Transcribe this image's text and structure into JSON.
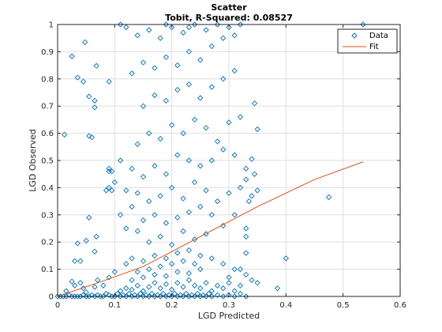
{
  "chart_data": {
    "type": "scatter",
    "title": "Scatter",
    "subtitle": "Tobit, R-Squared: 0.08527",
    "xlabel": "LGD Predicted",
    "ylabel": "LGD Observed",
    "xlim": [
      0,
      0.6
    ],
    "ylim": [
      0,
      1
    ],
    "grid": true,
    "legend_position": "top-right",
    "x_ticks": [
      "0",
      "0.1",
      "0.2",
      "0.3",
      "0.4",
      "0.5",
      "0.6"
    ],
    "y_ticks": [
      "0",
      "0.1",
      "0.2",
      "0.3",
      "0.4",
      "0.5",
      "0.6",
      "0.7",
      "0.8",
      "0.9",
      "1"
    ],
    "series": [
      {
        "name": "Data",
        "marker": "diamond",
        "color": "#0072bd",
        "points": [
          [
            0.0,
            0.0
          ],
          [
            0.005,
            0.0
          ],
          [
            0.01,
            0.0
          ],
          [
            0.015,
            0.0
          ],
          [
            0.02,
            0.005
          ],
          [
            0.025,
            0.0
          ],
          [
            0.03,
            0.0
          ],
          [
            0.035,
            0.0
          ],
          [
            0.04,
            0.0
          ],
          [
            0.045,
            0.005
          ],
          [
            0.05,
            0.0
          ],
          [
            0.055,
            0.0
          ],
          [
            0.06,
            0.005
          ],
          [
            0.065,
            0.0
          ],
          [
            0.07,
            0.005
          ],
          [
            0.075,
            0.0
          ],
          [
            0.08,
            0.0
          ],
          [
            0.085,
            0.01
          ],
          [
            0.09,
            0.005
          ],
          [
            0.095,
            0.0
          ],
          [
            0.1,
            0.0
          ],
          [
            0.105,
            0.01
          ],
          [
            0.11,
            0.0
          ],
          [
            0.115,
            0.005
          ],
          [
            0.12,
            0.0
          ],
          [
            0.125,
            0.01
          ],
          [
            0.13,
            0.0
          ],
          [
            0.135,
            0.005
          ],
          [
            0.14,
            0.0
          ],
          [
            0.145,
            0.01
          ],
          [
            0.15,
            0.0
          ],
          [
            0.155,
            0.005
          ],
          [
            0.16,
            0.0
          ],
          [
            0.165,
            0.01
          ],
          [
            0.17,
            0.0
          ],
          [
            0.175,
            0.005
          ],
          [
            0.18,
            0.0
          ],
          [
            0.185,
            0.01
          ],
          [
            0.19,
            0.0
          ],
          [
            0.195,
            0.005
          ],
          [
            0.2,
            0.0
          ],
          [
            0.205,
            0.01
          ],
          [
            0.21,
            0.0
          ],
          [
            0.215,
            0.005
          ],
          [
            0.22,
            0.0
          ],
          [
            0.225,
            0.01
          ],
          [
            0.23,
            0.0
          ],
          [
            0.235,
            0.005
          ],
          [
            0.24,
            0.0
          ],
          [
            0.245,
            0.01
          ],
          [
            0.25,
            0.0
          ],
          [
            0.255,
            0.005
          ],
          [
            0.26,
            0.0
          ],
          [
            0.265,
            0.01
          ],
          [
            0.27,
            0.0
          ],
          [
            0.28,
            0.005
          ],
          [
            0.29,
            0.0
          ],
          [
            0.3,
            0.005
          ],
          [
            0.31,
            0.0
          ],
          [
            0.32,
            0.01
          ],
          [
            0.33,
            0.0
          ],
          [
            0.11,
            0.02
          ],
          [
            0.12,
            0.03
          ],
          [
            0.13,
            0.025
          ],
          [
            0.14,
            0.04
          ],
          [
            0.15,
            0.02
          ],
          [
            0.16,
            0.035
          ],
          [
            0.17,
            0.05
          ],
          [
            0.18,
            0.03
          ],
          [
            0.19,
            0.045
          ],
          [
            0.2,
            0.025
          ],
          [
            0.21,
            0.05
          ],
          [
            0.22,
            0.035
          ],
          [
            0.23,
            0.06
          ],
          [
            0.24,
            0.04
          ],
          [
            0.25,
            0.03
          ],
          [
            0.26,
            0.05
          ],
          [
            0.27,
            0.02
          ],
          [
            0.28,
            0.04
          ],
          [
            0.29,
            0.03
          ],
          [
            0.3,
            0.05
          ],
          [
            0.31,
            0.02
          ],
          [
            0.32,
            0.04
          ],
          [
            0.13,
            0.06
          ],
          [
            0.15,
            0.07
          ],
          [
            0.17,
            0.08
          ],
          [
            0.19,
            0.075
          ],
          [
            0.21,
            0.09
          ],
          [
            0.23,
            0.085
          ],
          [
            0.25,
            0.1
          ],
          [
            0.14,
            0.09
          ],
          [
            0.16,
            0.1
          ],
          [
            0.18,
            0.11
          ],
          [
            0.2,
            0.12
          ],
          [
            0.22,
            0.13
          ],
          [
            0.24,
            0.12
          ],
          [
            0.12,
            0.12
          ],
          [
            0.13,
            0.14
          ],
          [
            0.15,
            0.13
          ],
          [
            0.17,
            0.15
          ],
          [
            0.19,
            0.14
          ],
          [
            0.21,
            0.16
          ],
          [
            0.23,
            0.17
          ],
          [
            0.25,
            0.15
          ],
          [
            0.27,
            0.14
          ],
          [
            0.29,
            0.12
          ],
          [
            0.31,
            0.1
          ],
          [
            0.33,
            0.08
          ],
          [
            0.35,
            0.05
          ],
          [
            0.16,
            0.2
          ],
          [
            0.18,
            0.22
          ],
          [
            0.2,
            0.19
          ],
          [
            0.22,
            0.24
          ],
          [
            0.24,
            0.21
          ],
          [
            0.26,
            0.23
          ],
          [
            0.14,
            0.24
          ],
          [
            0.12,
            0.25
          ],
          [
            0.15,
            0.28
          ],
          [
            0.17,
            0.3
          ],
          [
            0.19,
            0.27
          ],
          [
            0.21,
            0.29
          ],
          [
            0.23,
            0.31
          ],
          [
            0.25,
            0.33
          ],
          [
            0.27,
            0.3
          ],
          [
            0.29,
            0.26
          ],
          [
            0.31,
            0.3
          ],
          [
            0.33,
            0.25
          ],
          [
            0.11,
            0.3
          ],
          [
            0.13,
            0.33
          ],
          [
            0.16,
            0.35
          ],
          [
            0.18,
            0.37
          ],
          [
            0.2,
            0.4
          ],
          [
            0.22,
            0.36
          ],
          [
            0.24,
            0.42
          ],
          [
            0.26,
            0.39
          ],
          [
            0.28,
            0.35
          ],
          [
            0.3,
            0.38
          ],
          [
            0.32,
            0.4
          ],
          [
            0.14,
            0.38
          ],
          [
            0.12,
            0.39
          ],
          [
            0.1,
            0.42
          ],
          [
            0.09,
            0.46
          ],
          [
            0.11,
            0.5
          ],
          [
            0.13,
            0.47
          ],
          [
            0.15,
            0.44
          ],
          [
            0.17,
            0.48
          ],
          [
            0.19,
            0.45
          ],
          [
            0.21,
            0.52
          ],
          [
            0.23,
            0.5
          ],
          [
            0.25,
            0.48
          ],
          [
            0.27,
            0.5
          ],
          [
            0.29,
            0.54
          ],
          [
            0.31,
            0.52
          ],
          [
            0.33,
            0.47
          ],
          [
            0.14,
            0.56
          ],
          [
            0.16,
            0.6
          ],
          [
            0.18,
            0.58
          ],
          [
            0.2,
            0.63
          ],
          [
            0.22,
            0.6
          ],
          [
            0.24,
            0.65
          ],
          [
            0.26,
            0.62
          ],
          [
            0.28,
            0.57
          ],
          [
            0.3,
            0.64
          ],
          [
            0.32,
            0.66
          ],
          [
            0.15,
            0.7
          ],
          [
            0.17,
            0.74
          ],
          [
            0.19,
            0.72
          ],
          [
            0.21,
            0.76
          ],
          [
            0.23,
            0.78
          ],
          [
            0.25,
            0.73
          ],
          [
            0.27,
            0.77
          ],
          [
            0.29,
            0.8
          ],
          [
            0.31,
            0.83
          ],
          [
            0.13,
            0.82
          ],
          [
            0.15,
            0.86
          ],
          [
            0.17,
            0.84
          ],
          [
            0.19,
            0.88
          ],
          [
            0.21,
            0.85
          ],
          [
            0.23,
            0.9
          ],
          [
            0.25,
            0.87
          ],
          [
            0.27,
            0.92
          ],
          [
            0.29,
            0.95
          ],
          [
            0.31,
            0.96
          ],
          [
            0.14,
            0.96
          ],
          [
            0.16,
            0.98
          ],
          [
            0.18,
            0.95
          ],
          [
            0.2,
            0.99
          ],
          [
            0.22,
            0.97
          ],
          [
            0.24,
            1.0
          ],
          [
            0.26,
            0.98
          ],
          [
            0.28,
            1.0
          ],
          [
            0.3,
            0.99
          ],
          [
            0.32,
            1.0
          ],
          [
            0.11,
            1.0
          ],
          [
            0.12,
            0.99
          ],
          [
            0.19,
            1.0
          ],
          [
            0.23,
            0.99
          ],
          [
            0.025,
            0.883
          ],
          [
            0.035,
            0.805
          ],
          [
            0.045,
            0.79
          ],
          [
            0.048,
            0.935
          ],
          [
            0.055,
            0.735
          ],
          [
            0.065,
            0.72
          ],
          [
            0.068,
            0.848
          ],
          [
            0.065,
            0.695
          ],
          [
            0.09,
            0.79
          ],
          [
            0.055,
            0.59
          ],
          [
            0.06,
            0.585
          ],
          [
            0.012,
            0.595
          ],
          [
            0.085,
            0.39
          ],
          [
            0.09,
            0.4
          ],
          [
            0.095,
            0.39
          ],
          [
            0.095,
            0.46
          ],
          [
            0.09,
            0.47
          ],
          [
            0.055,
            0.29
          ],
          [
            0.05,
            0.205
          ],
          [
            0.068,
            0.22
          ],
          [
            0.065,
            0.165
          ],
          [
            0.035,
            0.195
          ],
          [
            0.03,
            0.13
          ],
          [
            0.04,
            0.13
          ],
          [
            0.025,
            0.055
          ],
          [
            0.03,
            0.04
          ],
          [
            0.04,
            0.05
          ],
          [
            0.015,
            0.02
          ],
          [
            0.045,
            0.03
          ],
          [
            0.065,
            0.035
          ],
          [
            0.08,
            0.04
          ],
          [
            0.07,
            0.06
          ],
          [
            0.09,
            0.07
          ],
          [
            0.1,
            0.09
          ],
          [
            0.05,
            0.015
          ],
          [
            0.535,
            1.0
          ],
          [
            0.4,
            0.14
          ],
          [
            0.475,
            0.365
          ],
          [
            0.385,
            0.03
          ],
          [
            0.35,
            0.615
          ],
          [
            0.345,
            0.71
          ],
          [
            0.34,
            0.505
          ],
          [
            0.33,
            0.43
          ],
          [
            0.35,
            0.39
          ],
          [
            0.345,
            0.45
          ],
          [
            0.34,
            0.37
          ],
          [
            0.335,
            0.35
          ],
          [
            0.33,
            0.22
          ],
          [
            0.33,
            0.16
          ],
          [
            0.32,
            0.1
          ],
          [
            0.3,
            0.07
          ],
          [
            0.34,
            0.06
          ]
        ]
      },
      {
        "name": "Fit",
        "marker": "line",
        "color": "#d95319",
        "points": [
          [
            0.0,
            0.0
          ],
          [
            0.07,
            0.05
          ],
          [
            0.15,
            0.11
          ],
          [
            0.25,
            0.22
          ],
          [
            0.35,
            0.33
          ],
          [
            0.45,
            0.43
          ],
          [
            0.535,
            0.495
          ]
        ]
      }
    ]
  }
}
